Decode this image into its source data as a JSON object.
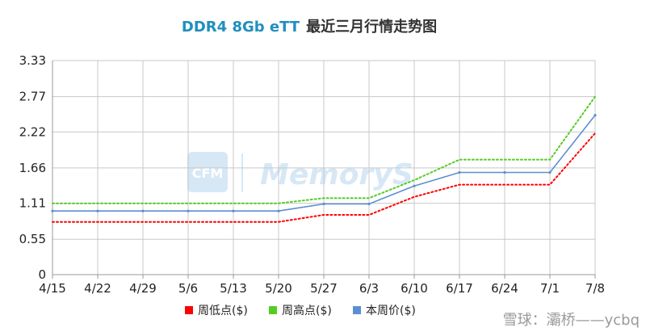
{
  "title": {
    "prefix": "DDR4 8Gb eTT",
    "suffix": "最近三月行情走势图"
  },
  "watermark": {
    "logo_text": "CFM",
    "brand_text": "MemoryS",
    "color": "#cfe4f5"
  },
  "footer": {
    "text": "雪球：灞桥——ycbq"
  },
  "colors": {
    "low": "#ff0000",
    "high": "#55cc22",
    "price": "#5b8fd0",
    "grid": "#c8c8c8"
  },
  "chart_data": {
    "type": "line",
    "categories": [
      "4/15",
      "4/22",
      "4/29",
      "5/6",
      "5/13",
      "5/20",
      "5/27",
      "6/3",
      "6/10",
      "6/17",
      "6/24",
      "7/1",
      "7/8"
    ],
    "y_ticks": [
      "0",
      "0.55",
      "1.11",
      "1.66",
      "2.22",
      "2.77",
      "3.33"
    ],
    "ylim": [
      0,
      3.33
    ],
    "grid": true,
    "legend_position": "bottom",
    "series": [
      {
        "name": "周低点($)",
        "style": "dotted",
        "color": "#ff0000",
        "values": [
          0.82,
          0.82,
          0.82,
          0.82,
          0.82,
          0.82,
          0.93,
          0.93,
          1.21,
          1.4,
          1.4,
          1.4,
          2.2
        ]
      },
      {
        "name": "周高点($)",
        "style": "dotted",
        "color": "#55cc22",
        "values": [
          1.11,
          1.11,
          1.11,
          1.11,
          1.11,
          1.11,
          1.19,
          1.19,
          1.47,
          1.79,
          1.79,
          1.79,
          2.77
        ]
      },
      {
        "name": "本周价($)",
        "style": "solid",
        "color": "#5b8fd0",
        "values": [
          0.99,
          0.99,
          0.99,
          0.99,
          0.99,
          0.99,
          1.1,
          1.1,
          1.38,
          1.59,
          1.59,
          1.59,
          2.48
        ]
      }
    ]
  }
}
